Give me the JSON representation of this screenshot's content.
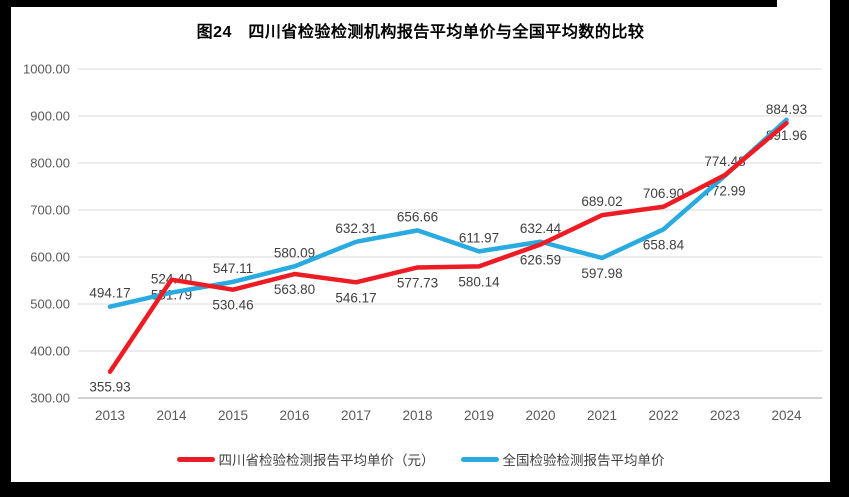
{
  "title": "图24　四川省检验检测机构报告平均单价与全国平均数的比较",
  "chart_data": {
    "type": "line",
    "title": "图24　四川省检验检测机构报告平均单价与全国平均数的比较",
    "categories": [
      "2013",
      "2014",
      "2015",
      "2016",
      "2017",
      "2018",
      "2019",
      "2020",
      "2021",
      "2022",
      "2023",
      "2024"
    ],
    "series": [
      {
        "name": "四川省检验检测报告平均单价（元）",
        "color": "#ed1c24",
        "values": [
          355.93,
          551.79,
          530.46,
          563.8,
          546.17,
          577.73,
          580.14,
          626.59,
          689.02,
          706.9,
          774.48,
          884.93
        ],
        "label_side": [
          "below",
          "below",
          "below",
          "below",
          "below",
          "below",
          "below",
          "below",
          "above",
          "above",
          "above",
          "above"
        ]
      },
      {
        "name": "全国检验检测报告平均单价",
        "color": "#29abe2",
        "values": [
          494.17,
          524.4,
          547.11,
          580.09,
          632.31,
          656.66,
          611.97,
          632.44,
          597.98,
          658.84,
          772.99,
          891.96
        ],
        "label_side": [
          "above",
          "above",
          "above",
          "above",
          "above",
          "above",
          "above",
          "above",
          "below",
          "below",
          "below",
          "below"
        ]
      }
    ],
    "ylim": [
      300,
      1000
    ],
    "ytick_step": 100,
    "ytick_decimals": 2,
    "xlabel": "",
    "ylabel": "",
    "grid": "horizontal",
    "legend_position": "bottom",
    "colors": {
      "gridline": "#d9d9d9",
      "axis_line": "#a6a6a6",
      "axis_text": "#595959",
      "data_label_text": "#404040",
      "title_text": "#000000",
      "panel_bg": "#ffffff",
      "frame_bg": "#000000"
    }
  }
}
